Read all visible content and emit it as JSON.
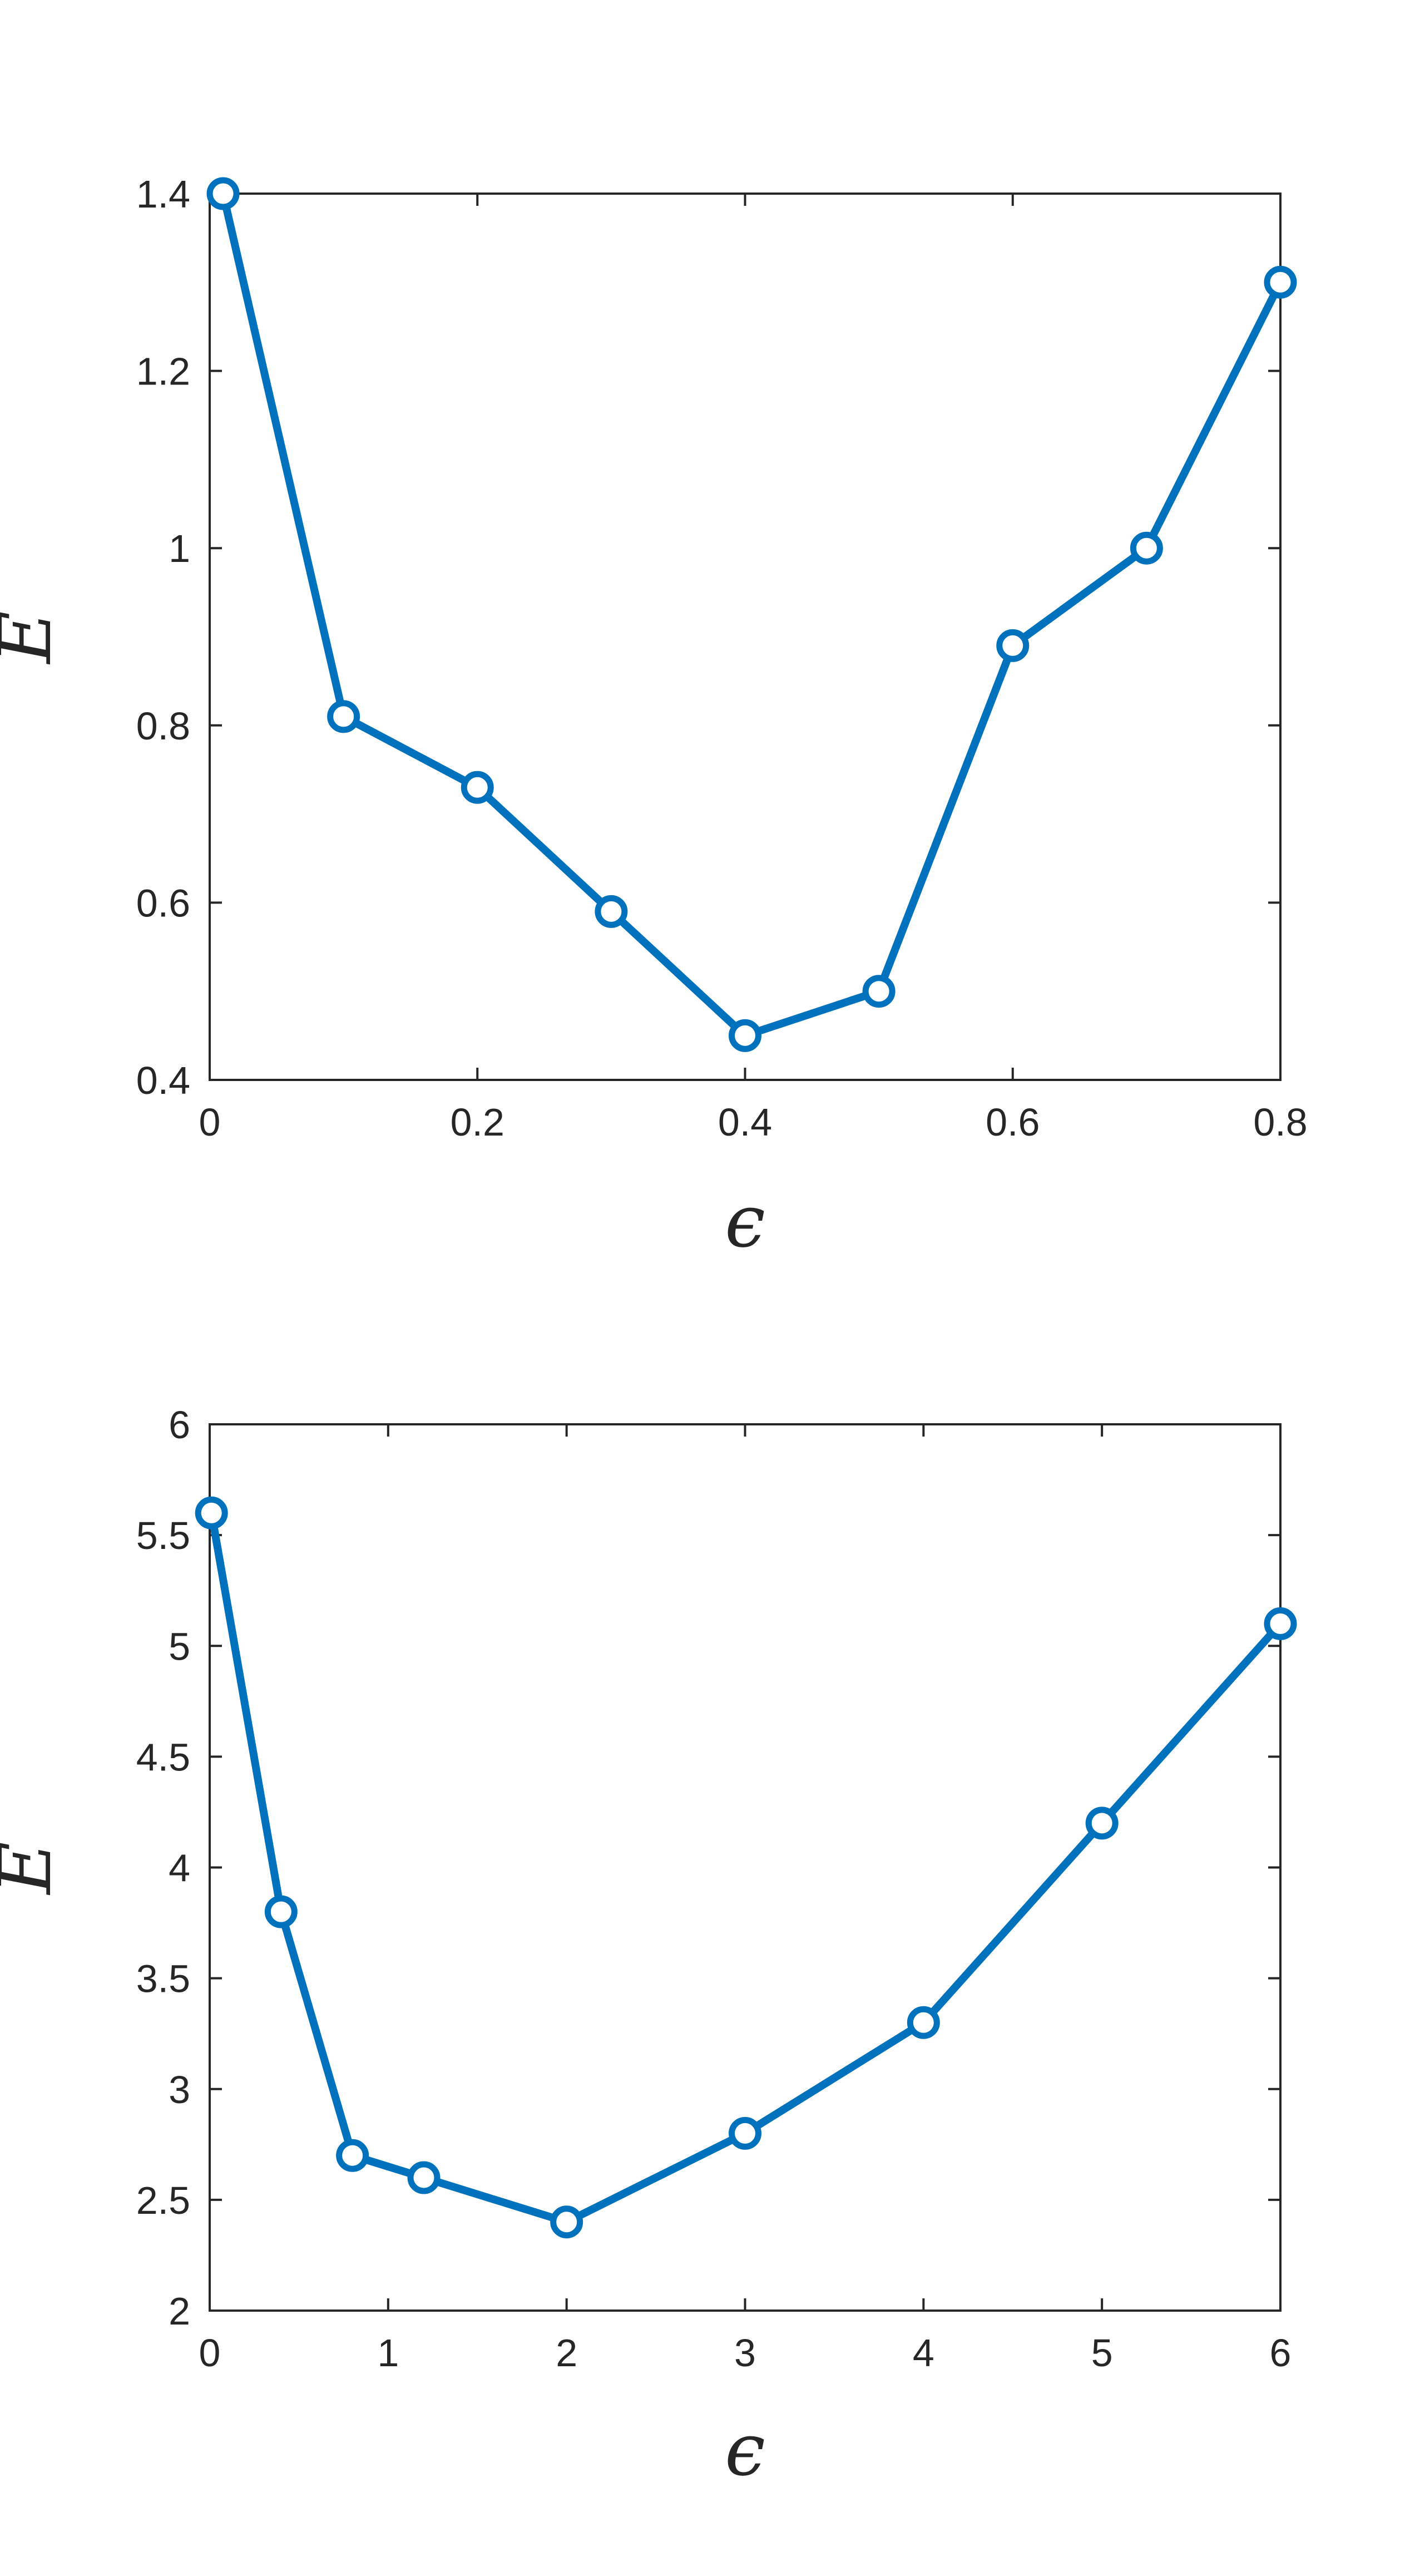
{
  "colors": {
    "series": "#0072BD",
    "axes": "#262626",
    "background": "#ffffff"
  },
  "chart_data": [
    {
      "type": "line",
      "xlabel": "ϵ",
      "ylabel": "E",
      "xlim": [
        0,
        0.8
      ],
      "ylim": [
        0.4,
        1.4
      ],
      "xticks": [
        0,
        0.2,
        0.4,
        0.6,
        0.8
      ],
      "xtick_labels": [
        "0",
        "0.2",
        "0.4",
        "0.6",
        "0.8"
      ],
      "yticks": [
        0.4,
        0.6,
        0.8,
        1.0,
        1.2,
        1.4
      ],
      "ytick_labels": [
        "0.4",
        "0.6",
        "0.8",
        "1",
        "1.2",
        "1.4"
      ],
      "grid": false,
      "marker": "circle",
      "series": [
        {
          "x": [
            0.01,
            0.1,
            0.2,
            0.3,
            0.4,
            0.5,
            0.6,
            0.7,
            0.8
          ],
          "values": [
            1.4,
            0.81,
            0.73,
            0.59,
            0.45,
            0.5,
            0.89,
            1.0,
            1.3
          ]
        }
      ]
    },
    {
      "type": "line",
      "xlabel": "ϵ",
      "ylabel": "E",
      "xlim": [
        0,
        6
      ],
      "ylim": [
        2,
        6
      ],
      "xticks": [
        0,
        1,
        2,
        3,
        4,
        5,
        6
      ],
      "xtick_labels": [
        "0",
        "1",
        "2",
        "3",
        "4",
        "5",
        "6"
      ],
      "yticks": [
        2,
        2.5,
        3,
        3.5,
        4,
        4.5,
        5,
        5.5,
        6
      ],
      "ytick_labels": [
        "2",
        "2.5",
        "3",
        "3.5",
        "4",
        "4.5",
        "5",
        "5.5",
        "6"
      ],
      "grid": false,
      "marker": "circle",
      "series": [
        {
          "x": [
            0.01,
            0.4,
            0.8,
            1.2,
            2,
            3,
            4,
            5,
            6
          ],
          "values": [
            5.6,
            3.8,
            2.7,
            2.6,
            2.4,
            2.8,
            3.3,
            4.2,
            5.1
          ]
        }
      ]
    }
  ]
}
